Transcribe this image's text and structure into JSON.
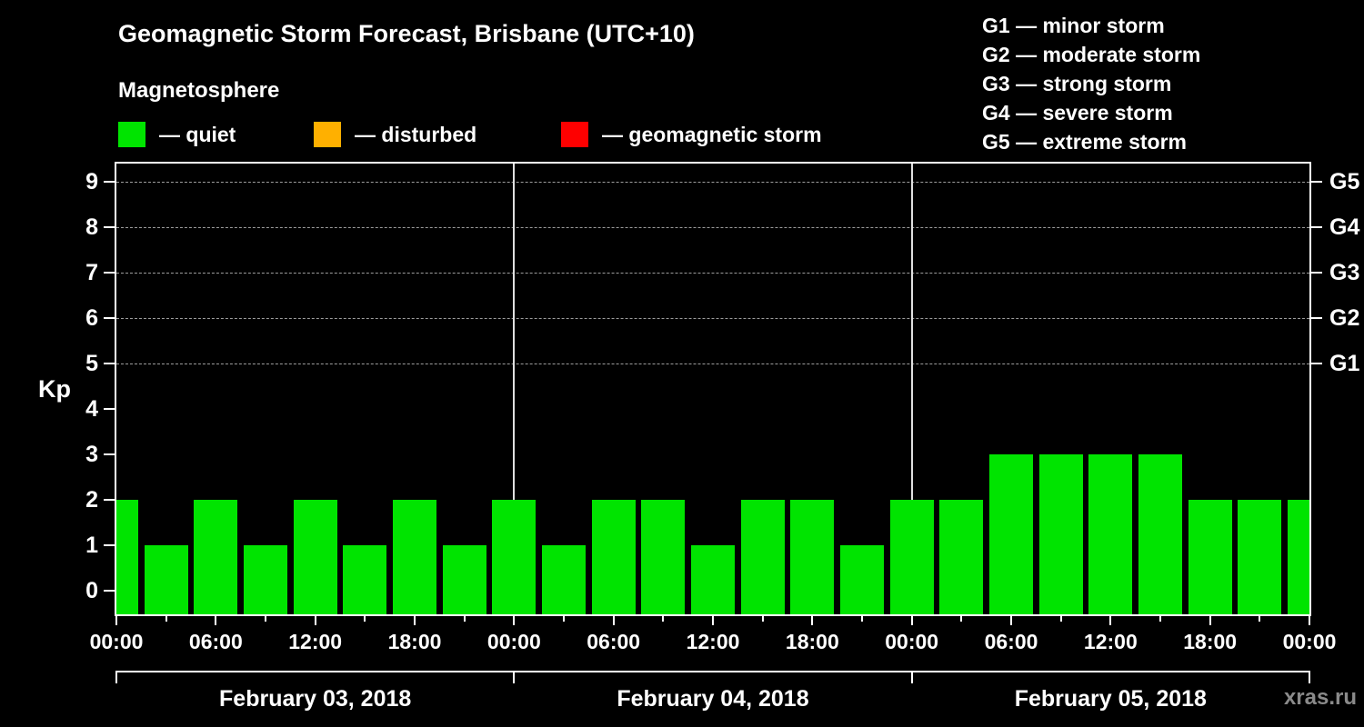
{
  "title": "Geomagnetic Storm Forecast, Brisbane (UTC+10)",
  "subtitle": "Magnetosphere",
  "legend": {
    "items": [
      {
        "name": "quiet",
        "label": "— quiet",
        "color": "#00e400"
      },
      {
        "name": "disturbed",
        "label": "— disturbed",
        "color": "#ffb000"
      },
      {
        "name": "geomagnetic-storm",
        "label": "— geomagnetic storm",
        "color": "#fe0000"
      }
    ]
  },
  "storm_scale_legend": [
    "G1 — minor storm",
    "G2 — moderate storm",
    "G3 — strong storm",
    "G4 — severe storm",
    "G5 — extreme storm"
  ],
  "watermark": "xras.ru",
  "chart_data": {
    "type": "bar",
    "title": "Geomagnetic Storm Forecast, Brisbane (UTC+10)",
    "ylabel": "Kp",
    "ylim": [
      0,
      9
    ],
    "y_ticks": [
      0,
      1,
      2,
      3,
      4,
      5,
      6,
      7,
      8,
      9
    ],
    "right_axis_labels": [
      {
        "kp": 5,
        "label": "G1"
      },
      {
        "kp": 6,
        "label": "G2"
      },
      {
        "kp": 7,
        "label": "G3"
      },
      {
        "kp": 8,
        "label": "G4"
      },
      {
        "kp": 9,
        "label": "G5"
      }
    ],
    "gridline_levels": [
      5,
      6,
      7,
      8,
      9
    ],
    "x_hours_span": 72,
    "x_tick_interval_hours": 6,
    "x_minor_tick_interval_hours": 3,
    "x_tick_labels": [
      "00:00",
      "06:00",
      "12:00",
      "18:00",
      "00:00",
      "06:00",
      "12:00",
      "18:00",
      "00:00",
      "06:00",
      "12:00",
      "18:00",
      "00:00"
    ],
    "day_boundaries_hours": [
      24,
      48
    ],
    "dates": [
      "February 03, 2018",
      "February 04, 2018",
      "February 05, 2018"
    ],
    "bar_interval_hours": 3,
    "series": [
      {
        "name": "Kp forecast",
        "hours": [
          0,
          3,
          6,
          9,
          12,
          15,
          18,
          21,
          24,
          27,
          30,
          33,
          36,
          39,
          42,
          45,
          48,
          51,
          54,
          57,
          60,
          63,
          66,
          69,
          72
        ],
        "values": [
          2,
          1,
          2,
          1,
          2,
          1,
          2,
          1,
          2,
          1,
          2,
          2,
          1,
          2,
          2,
          1,
          2,
          2,
          3,
          3,
          3,
          3,
          2,
          2,
          2
        ]
      }
    ],
    "status_thresholds": {
      "disturbed_min_kp": 4,
      "storm_min_kp": 5
    },
    "legend_position": "top-left",
    "grid": "dashed-horizontal-at-storm-levels"
  }
}
